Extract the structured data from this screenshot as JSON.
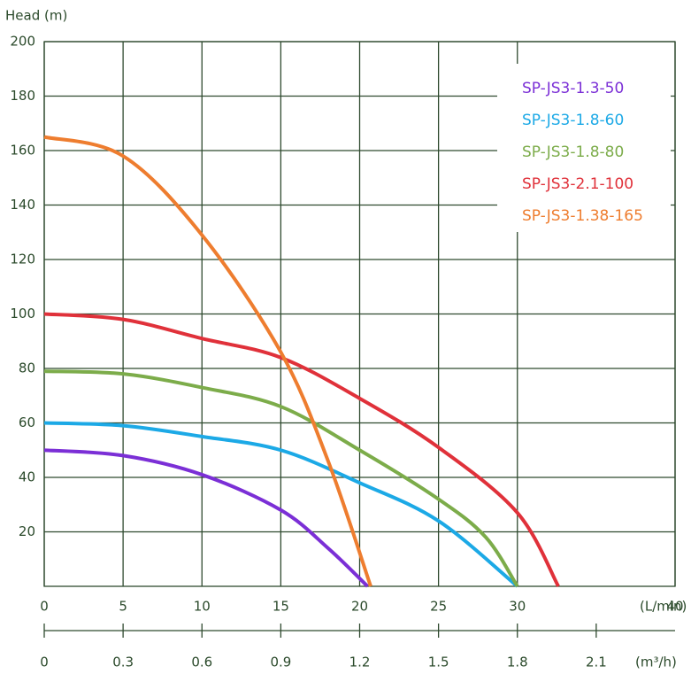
{
  "chart_data": {
    "type": "line",
    "ylabel": "Head (m)",
    "xlabel": "(L/min)",
    "x2label": "(m³/h)",
    "xlim": [
      0,
      40
    ],
    "xticks": [
      0,
      5,
      10,
      15,
      20,
      25,
      30,
      40
    ],
    "x2lim": [
      0,
      2.4
    ],
    "x2ticks": [
      0,
      0.3,
      0.6,
      0.9,
      1.2,
      1.5,
      1.8,
      2.1
    ],
    "ylim": [
      0,
      200
    ],
    "yticks": [
      20,
      40,
      60,
      80,
      100,
      120,
      140,
      160,
      180,
      200
    ],
    "grid": true,
    "legend": "upper right",
    "series": [
      {
        "name": "SP-JS3-1.3-50",
        "color": "#7b2fd6",
        "x": [
          0,
          5,
          10,
          15,
          18,
          20.5
        ],
        "values": [
          50,
          48,
          41,
          28,
          14,
          0
        ]
      },
      {
        "name": "SP-JS3-1.8-60",
        "color": "#1ca9e6",
        "x": [
          0,
          5,
          10,
          15,
          20,
          25,
          30
        ],
        "values": [
          60,
          59,
          55,
          50,
          38,
          24,
          0
        ]
      },
      {
        "name": "SP-JS3-1.8-80",
        "color": "#7cac4a",
        "x": [
          0,
          5,
          10,
          15,
          20,
          25,
          28,
          30
        ],
        "values": [
          79,
          78,
          73,
          66,
          50,
          32,
          18,
          0
        ]
      },
      {
        "name": "SP-JS3-2.1-100",
        "color": "#e0313a",
        "x": [
          0,
          5,
          10,
          15,
          20,
          25,
          30,
          32.6
        ],
        "values": [
          100,
          98,
          91,
          84,
          69,
          51,
          27,
          0
        ]
      },
      {
        "name": "SP-JS3-1.38-165",
        "color": "#ee7d2f",
        "x": [
          0,
          5,
          10,
          15,
          18,
          20.7
        ],
        "values": [
          165,
          158,
          129,
          86,
          46,
          0
        ]
      }
    ]
  }
}
